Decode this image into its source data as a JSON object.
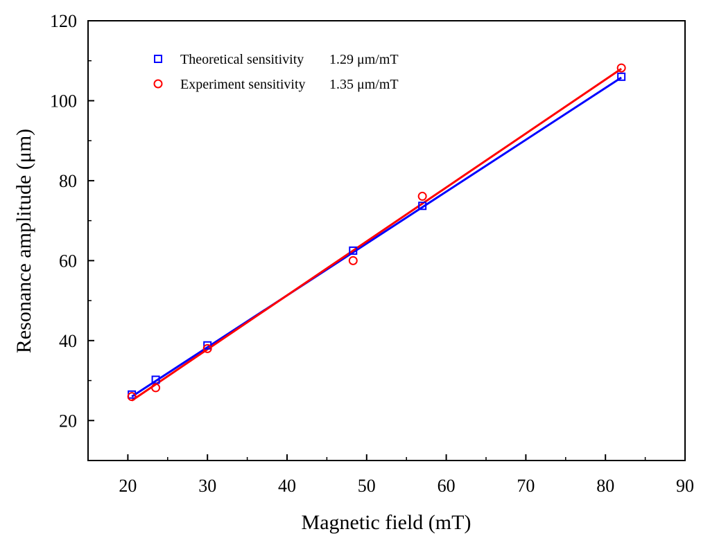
{
  "chart_data": {
    "type": "scatter",
    "title": "",
    "xlabel": "Magnetic field (mT)",
    "ylabel": "Resonance amplitude (μm)",
    "xlim": [
      15,
      90
    ],
    "ylim": [
      10,
      120
    ],
    "xticks": [
      20,
      30,
      40,
      50,
      60,
      70,
      80,
      90
    ],
    "yticks": [
      20,
      40,
      60,
      80,
      100,
      120
    ],
    "grid": false,
    "legend_position": "top-left",
    "series": [
      {
        "name": "Theoretical sensitivity 1.29 μm/mT",
        "legend_label": "Theoretical sensitivity",
        "legend_value": "1.29  μm/mT",
        "marker": "square",
        "color": "#0000ff",
        "points": [
          {
            "x": 20.5,
            "y": 26.5
          },
          {
            "x": 23.5,
            "y": 30.2
          },
          {
            "x": 30.0,
            "y": 38.8
          },
          {
            "x": 48.3,
            "y": 62.5
          },
          {
            "x": 57.0,
            "y": 73.7
          },
          {
            "x": 82.0,
            "y": 106.0
          }
        ],
        "fit_line": {
          "x": [
            20.5,
            82.0
          ],
          "y": [
            26.0,
            105.8
          ]
        }
      },
      {
        "name": "Experiment sensitivity 1.35 μm/mT",
        "legend_label": "Experiment sensitivity",
        "legend_value": "1.35  μm/mT",
        "marker": "circle",
        "color": "#ff0000",
        "points": [
          {
            "x": 20.5,
            "y": 26.0
          },
          {
            "x": 23.5,
            "y": 28.2
          },
          {
            "x": 30.0,
            "y": 38.0
          },
          {
            "x": 48.3,
            "y": 60.0
          },
          {
            "x": 57.0,
            "y": 76.1
          },
          {
            "x": 82.0,
            "y": 108.2
          }
        ],
        "fit_line": {
          "x": [
            20.5,
            82.0
          ],
          "y": [
            25.0,
            108.0
          ]
        }
      }
    ]
  }
}
